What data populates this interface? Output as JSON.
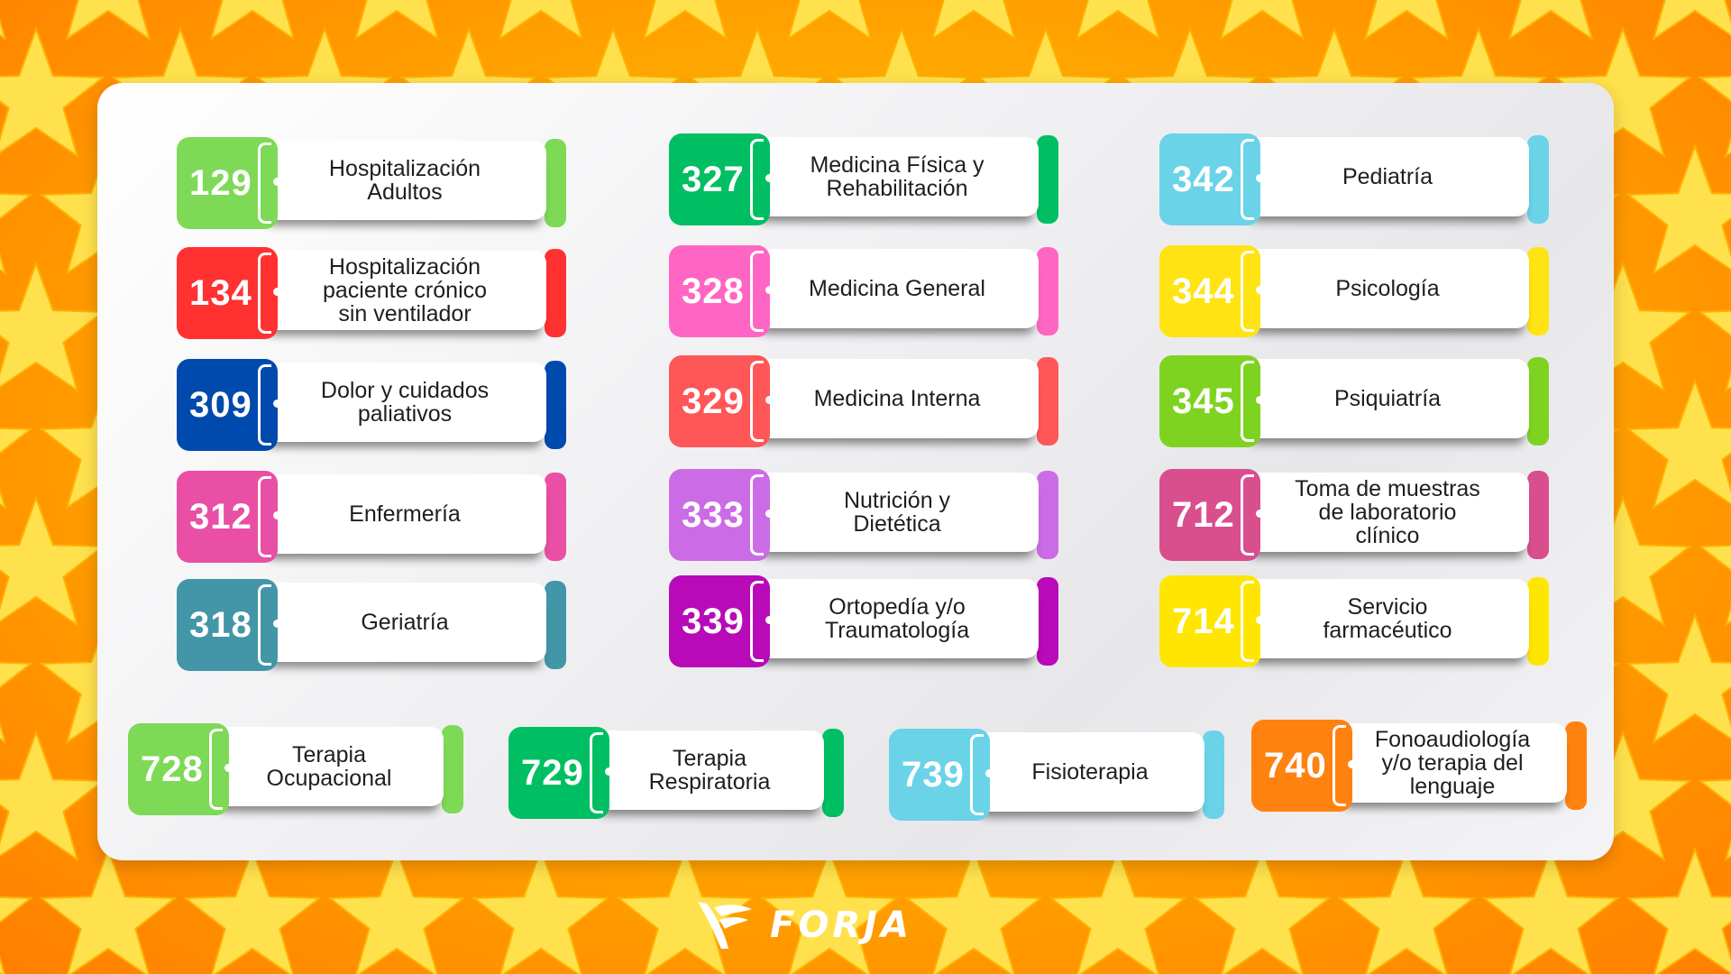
{
  "brand": {
    "name": "FORJA"
  },
  "cards": [
    {
      "code": "129",
      "label": "Hospitalización\nAdultos",
      "color": "#7ed957"
    },
    {
      "code": "134",
      "label": "Hospitalización\npaciente crónico\nsin ventilador",
      "color": "#ff3131"
    },
    {
      "code": "309",
      "label": "Dolor y cuidados\npaliativos",
      "color": "#004aad"
    },
    {
      "code": "312",
      "label": "Enfermería",
      "color": "#e84fa5"
    },
    {
      "code": "318",
      "label": "Geriatría",
      "color": "#4396a8"
    },
    {
      "code": "327",
      "label": "Medicina Física y\nRehabilitación",
      "color": "#00bf63"
    },
    {
      "code": "328",
      "label": "Medicina General",
      "color": "#ff66c4"
    },
    {
      "code": "329",
      "label": "Medicina Interna",
      "color": "#ff5757"
    },
    {
      "code": "333",
      "label": "Nutrición y\nDietética",
      "color": "#cb6ce6"
    },
    {
      "code": "339",
      "label": "Ortopedía y/o\nTraumatología",
      "color": "#b80ab8"
    },
    {
      "code": "342",
      "label": "Pediatría",
      "color": "#6ad3e8"
    },
    {
      "code": "344",
      "label": "Psicología",
      "color": "#ffe313"
    },
    {
      "code": "345",
      "label": "Psiquiatría",
      "color": "#7ed321"
    },
    {
      "code": "712",
      "label": "Toma de muestras\nde laboratorio\nclínico",
      "color": "#d94f8e"
    },
    {
      "code": "714",
      "label": "Servicio\nfarmacéutico",
      "color": "#ffe600"
    },
    {
      "code": "728",
      "label": "Terapia\nOcupacional",
      "color": "#7ed957"
    },
    {
      "code": "729",
      "label": "Terapia\nRespiratoria",
      "color": "#00bf63"
    },
    {
      "code": "739",
      "label": "Fisioterapia",
      "color": "#6ad3e8"
    },
    {
      "code": "740",
      "label": "Fonoaudiología\ny/o terapia del\nlenguaje",
      "color": "#ff8210"
    }
  ]
}
